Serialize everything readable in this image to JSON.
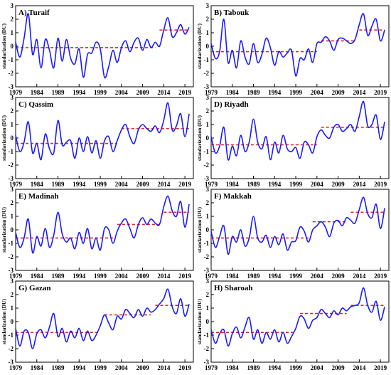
{
  "chart_data": [
    {
      "type": "line",
      "title": "A) Turaif",
      "ylabel": "standarization (DU)",
      "xlim": [
        1979,
        2021
      ],
      "ylim": [
        -3,
        3
      ],
      "x_ticks": [
        1979,
        1984,
        1989,
        1994,
        1999,
        2004,
        2009,
        2014,
        2019
      ],
      "y_ticks": [
        -3,
        -2,
        -1,
        0,
        1,
        2,
        3
      ],
      "x": [
        1979,
        1980,
        1981,
        1982,
        1983,
        1984,
        1985,
        1986,
        1987,
        1988,
        1989,
        1990,
        1991,
        1992,
        1993,
        1994,
        1995,
        1996,
        1997,
        1998,
        1999,
        2000,
        2001,
        2002,
        2003,
        2004,
        2005,
        2006,
        2007,
        2008,
        2009,
        2010,
        2011,
        2012,
        2013,
        2014,
        2015,
        2016,
        2017,
        2018,
        2019,
        2020
      ],
      "series": [
        {
          "values": [
            0.3,
            -0.8,
            0.6,
            2.4,
            -0.6,
            0.5,
            -1.6,
            0.5,
            -0.3,
            -1.6,
            0.6,
            -1.1,
            0.5,
            -0.9,
            -1.3,
            -0.2,
            -2.3,
            -0.6,
            -0.5,
            0.3,
            -0.2,
            -2.3,
            -1.5,
            -0.3,
            -1.2,
            -0.1,
            0.4,
            -0.4,
            0.3,
            0.6,
            -0.3,
            0.5,
            -0.1,
            0.3,
            0.0,
            1.2,
            2.1,
            0.7,
            1.0,
            1.6,
            0.9,
            1.4
          ]
        }
      ],
      "trend": [
        {
          "x": [
            1979,
            2012
          ],
          "y": [
            -0.1,
            -0.1
          ]
        },
        {
          "x": [
            2013,
            2020
          ],
          "y": [
            1.2,
            1.2
          ]
        }
      ]
    },
    {
      "type": "line",
      "title": "B) Tabouk",
      "ylabel": "standarization (DU)",
      "xlim": [
        1979,
        2021
      ],
      "ylim": [
        -3,
        3
      ],
      "x_ticks": [
        1979,
        1984,
        1989,
        1994,
        1999,
        2004,
        2009,
        2014,
        2019
      ],
      "y_ticks": [
        -3,
        -2,
        -1,
        0,
        1,
        2,
        3
      ],
      "x": [
        1979,
        1980,
        1981,
        1982,
        1983,
        1984,
        1985,
        1986,
        1987,
        1988,
        1989,
        1990,
        1991,
        1992,
        1993,
        1994,
        1995,
        1996,
        1997,
        1998,
        1999,
        2000,
        2001,
        2002,
        2003,
        2004,
        2005,
        2006,
        2007,
        2008,
        2009,
        2010,
        2011,
        2012,
        2013,
        2014,
        2015,
        2016,
        2017,
        2018,
        2019,
        2020
      ],
      "series": [
        {
          "values": [
            0.2,
            -0.9,
            -0.4,
            2.0,
            -1.2,
            -0.3,
            -1.6,
            0.4,
            -0.8,
            -1.3,
            0.2,
            -1.2,
            -0.6,
            0.6,
            -0.1,
            -1.4,
            -0.4,
            -0.8,
            -0.5,
            -0.3,
            -2.2,
            -0.9,
            -1.0,
            -0.2,
            -1.2,
            0.2,
            0.3,
            0.7,
            0.4,
            -0.3,
            0.5,
            0.6,
            0.4,
            0.2,
            0.5,
            1.6,
            2.4,
            0.8,
            1.5,
            2.0,
            0.4,
            1.2
          ]
        }
      ],
      "trend": [
        {
          "x": [
            1979,
            2004
          ],
          "y": [
            -0.4,
            -0.4
          ]
        },
        {
          "x": [
            2005,
            2013
          ],
          "y": [
            0.4,
            0.4
          ]
        },
        {
          "x": [
            2014,
            2020
          ],
          "y": [
            1.2,
            1.2
          ]
        }
      ]
    },
    {
      "type": "line",
      "title": "C) Qassim",
      "ylabel": "standarization (DU)",
      "xlim": [
        1979,
        2021
      ],
      "ylim": [
        -3,
        3
      ],
      "x_ticks": [
        1979,
        1984,
        1989,
        1994,
        1999,
        2004,
        2009,
        2014,
        2019
      ],
      "y_ticks": [
        -3,
        -2,
        -1,
        0,
        1,
        2,
        3
      ],
      "x": [
        1979,
        1980,
        1981,
        1982,
        1983,
        1984,
        1985,
        1986,
        1987,
        1988,
        1989,
        1990,
        1991,
        1992,
        1993,
        1994,
        1995,
        1996,
        1997,
        1998,
        1999,
        2000,
        2001,
        2002,
        2003,
        2004,
        2005,
        2006,
        2007,
        2008,
        2009,
        2010,
        2011,
        2012,
        2013,
        2014,
        2015,
        2016,
        2017,
        2018,
        2019,
        2020
      ],
      "series": [
        {
          "values": [
            0.2,
            -1.0,
            -0.3,
            1.2,
            -1.1,
            -0.4,
            -1.6,
            0.3,
            -0.8,
            -1.1,
            1.3,
            -0.5,
            -0.3,
            -0.2,
            -1.5,
            0.0,
            -1.0,
            0.1,
            -1.1,
            -0.2,
            -1.5,
            -0.2,
            0.1,
            -1.0,
            -0.2,
            0.6,
            1.0,
            0.1,
            -0.4,
            0.6,
            1.0,
            0.7,
            0.5,
            0.9,
            0.4,
            1.3,
            2.6,
            0.6,
            0.9,
            1.8,
            0.1,
            1.8
          ]
        }
      ],
      "trend": [
        {
          "x": [
            1979,
            2003
          ],
          "y": [
            -0.4,
            -0.4
          ]
        },
        {
          "x": [
            2004,
            2020
          ],
          "y": [
            0.7,
            0.7
          ]
        }
      ]
    },
    {
      "type": "line",
      "title": "D) Riyadh",
      "ylabel": "standarization (DU)",
      "xlim": [
        1979,
        2021
      ],
      "ylim": [
        -3,
        3
      ],
      "x_ticks": [
        1979,
        1984,
        1989,
        1994,
        1999,
        2004,
        2009,
        2014,
        2019
      ],
      "y_ticks": [
        -3,
        -2,
        -1,
        0,
        1,
        2,
        3
      ],
      "x": [
        1979,
        1980,
        1981,
        1982,
        1983,
        1984,
        1985,
        1986,
        1987,
        1988,
        1989,
        1990,
        1991,
        1992,
        1993,
        1994,
        1995,
        1996,
        1997,
        1998,
        1999,
        2000,
        2001,
        2002,
        2003,
        2004,
        2005,
        2006,
        2007,
        2008,
        2009,
        2010,
        2011,
        2012,
        2013,
        2014,
        2015,
        2016,
        2017,
        2018,
        2019,
        2020
      ],
      "series": [
        {
          "values": [
            0.1,
            -1.1,
            -0.6,
            0.8,
            -1.6,
            -0.6,
            -1.3,
            0.2,
            -1.0,
            -0.3,
            1.4,
            -0.3,
            -0.8,
            0.1,
            -1.6,
            -0.3,
            -1.1,
            0.2,
            -0.8,
            -1.0,
            -0.7,
            -1.5,
            -0.3,
            -0.5,
            -1.1,
            0.1,
            0.6,
            0.2,
            0.0,
            0.8,
            1.0,
            0.5,
            0.7,
            1.0,
            0.5,
            1.6,
            2.7,
            0.9,
            1.0,
            1.7,
            -0.1,
            1.2
          ]
        }
      ],
      "trend": [
        {
          "x": [
            1979,
            2004
          ],
          "y": [
            -0.5,
            -0.5
          ]
        },
        {
          "x": [
            2005,
            2020
          ],
          "y": [
            0.8,
            0.8
          ]
        }
      ]
    },
    {
      "type": "line",
      "title": "E) Madinah",
      "ylabel": "standarization (DU)",
      "xlim": [
        1979,
        2021
      ],
      "ylim": [
        -3,
        3
      ],
      "x_ticks": [
        1979,
        1984,
        1989,
        1994,
        1999,
        2004,
        2009,
        2014,
        2019
      ],
      "y_ticks": [
        -3,
        -2,
        -1,
        0,
        1,
        2,
        3
      ],
      "x": [
        1979,
        1980,
        1981,
        1982,
        1983,
        1984,
        1985,
        1986,
        1987,
        1988,
        1989,
        1990,
        1991,
        1992,
        1993,
        1994,
        1995,
        1996,
        1997,
        1998,
        1999,
        2000,
        2001,
        2002,
        2003,
        2004,
        2005,
        2006,
        2007,
        2008,
        2009,
        2010,
        2011,
        2012,
        2013,
        2014,
        2015,
        2016,
        2017,
        2018,
        2019,
        2020
      ],
      "series": [
        {
          "values": [
            -0.2,
            -1.3,
            -0.6,
            0.8,
            -1.7,
            -0.5,
            -1.2,
            0.1,
            -1.3,
            -0.4,
            1.3,
            -0.3,
            -0.9,
            -0.6,
            -1.4,
            -0.2,
            -1.0,
            0.1,
            -1.4,
            -0.6,
            -1.5,
            0.1,
            0.0,
            -1.0,
            -0.1,
            0.5,
            0.8,
            0.1,
            -0.6,
            0.4,
            0.9,
            0.4,
            0.8,
            0.5,
            0.4,
            1.7,
            2.5,
            1.4,
            1.0,
            2.1,
            0.2,
            1.9
          ]
        }
      ],
      "trend": [
        {
          "x": [
            1979,
            2002
          ],
          "y": [
            -0.6,
            -0.6
          ]
        },
        {
          "x": [
            2003,
            2013
          ],
          "y": [
            0.4,
            0.4
          ]
        },
        {
          "x": [
            2014,
            2020
          ],
          "y": [
            1.3,
            1.3
          ]
        }
      ]
    },
    {
      "type": "line",
      "title": "F) Makkah",
      "ylabel": "standarization (DU)",
      "xlim": [
        1979,
        2021
      ],
      "ylim": [
        -3,
        3
      ],
      "x_ticks": [
        1979,
        1984,
        1989,
        1994,
        1999,
        2004,
        2009,
        2014,
        2019
      ],
      "y_ticks": [
        -3,
        -2,
        -1,
        0,
        1,
        2,
        3
      ],
      "x": [
        1979,
        1980,
        1981,
        1982,
        1983,
        1984,
        1985,
        1986,
        1987,
        1988,
        1989,
        1990,
        1991,
        1992,
        1993,
        1994,
        1995,
        1996,
        1997,
        1998,
        1999,
        2000,
        2001,
        2002,
        2003,
        2004,
        2005,
        2006,
        2007,
        2008,
        2009,
        2010,
        2011,
        2012,
        2013,
        2014,
        2015,
        2016,
        2017,
        2018,
        2019,
        2020
      ],
      "series": [
        {
          "values": [
            -0.1,
            -1.3,
            -0.5,
            0.3,
            -1.8,
            -0.5,
            -0.9,
            0.0,
            -1.2,
            -0.6,
            1.0,
            -0.6,
            -0.9,
            -0.4,
            -1.3,
            -0.5,
            -1.1,
            -0.3,
            -1.5,
            -0.9,
            -0.8,
            0.2,
            -0.1,
            -0.9,
            0.0,
            0.3,
            0.6,
            0.2,
            -0.5,
            0.5,
            0.7,
            0.3,
            0.9,
            0.7,
            0.5,
            1.5,
            2.4,
            1.2,
            0.9,
            1.9,
            0.1,
            1.6
          ]
        }
      ],
      "trend": [
        {
          "x": [
            1979,
            2002
          ],
          "y": [
            -0.6,
            -0.6
          ]
        },
        {
          "x": [
            2003,
            2011
          ],
          "y": [
            0.6,
            0.6
          ]
        },
        {
          "x": [
            2012,
            2020
          ],
          "y": [
            1.3,
            1.3
          ]
        }
      ]
    },
    {
      "type": "line",
      "title": "G) Gazan",
      "ylabel": "standarization (DU)",
      "xlim": [
        1979,
        2021
      ],
      "ylim": [
        -3,
        3
      ],
      "x_ticks": [
        1979,
        1984,
        1989,
        1994,
        1999,
        2004,
        2009,
        2014,
        2019
      ],
      "y_ticks": [
        -3,
        -2,
        -1,
        0,
        1,
        2,
        3
      ],
      "x": [
        1979,
        1980,
        1981,
        1982,
        1983,
        1984,
        1985,
        1986,
        1987,
        1988,
        1989,
        1990,
        1991,
        1992,
        1993,
        1994,
        1995,
        1996,
        1997,
        1998,
        1999,
        2000,
        2001,
        2002,
        2003,
        2004,
        2005,
        2006,
        2007,
        2008,
        2009,
        2010,
        2011,
        2012,
        2013,
        2014,
        2015,
        2016,
        2017,
        2018,
        2019,
        2020
      ],
      "series": [
        {
          "values": [
            -0.5,
            -1.8,
            -0.7,
            -0.8,
            -2.0,
            -0.9,
            -0.6,
            -1.2,
            -0.4,
            0.6,
            -1.1,
            -0.5,
            -1.5,
            -0.7,
            -1.2,
            -0.5,
            -1.4,
            -0.7,
            -1.4,
            -1.0,
            -0.3,
            0.5,
            -0.1,
            -0.6,
            0.4,
            0.2,
            0.9,
            0.6,
            0.3,
            0.9,
            0.4,
            1.0,
            0.7,
            0.9,
            1.3,
            1.7,
            2.4,
            1.1,
            0.6,
            1.7,
            0.4,
            1.3
          ]
        }
      ],
      "trend": [
        {
          "x": [
            1979,
            1999
          ],
          "y": [
            -0.8,
            -0.8
          ]
        },
        {
          "x": [
            2000,
            2011
          ],
          "y": [
            0.5,
            0.5
          ]
        },
        {
          "x": [
            2012,
            2020
          ],
          "y": [
            1.2,
            1.2
          ]
        }
      ]
    },
    {
      "type": "line",
      "title": "H) Sharoah",
      "ylabel": "standarization (DU)",
      "xlim": [
        1979,
        2021
      ],
      "ylim": [
        -3,
        3
      ],
      "x_ticks": [
        1979,
        1984,
        1989,
        1994,
        1999,
        2004,
        2009,
        2014,
        2019
      ],
      "y_ticks": [
        -3,
        -2,
        -1,
        0,
        1,
        2,
        3
      ],
      "x": [
        1979,
        1980,
        1981,
        1982,
        1983,
        1984,
        1985,
        1986,
        1987,
        1988,
        1989,
        1990,
        1991,
        1992,
        1993,
        1994,
        1995,
        1996,
        1997,
        1998,
        1999,
        2000,
        2001,
        2002,
        2003,
        2004,
        2005,
        2006,
        2007,
        2008,
        2009,
        2010,
        2011,
        2012,
        2013,
        2014,
        2015,
        2016,
        2017,
        2018,
        2019,
        2020
      ],
      "series": [
        {
          "values": [
            -0.6,
            -1.6,
            -0.9,
            -0.6,
            -1.8,
            -0.9,
            -0.4,
            -1.2,
            -0.4,
            0.3,
            -1.3,
            -0.6,
            -1.6,
            -0.8,
            -1.3,
            -0.6,
            -1.5,
            -0.8,
            -1.6,
            -1.1,
            -0.5,
            0.4,
            0.2,
            -0.5,
            0.1,
            0.3,
            0.9,
            0.6,
            0.3,
            0.8,
            0.5,
            1.0,
            0.8,
            1.1,
            1.2,
            1.4,
            2.5,
            1.2,
            0.7,
            1.5,
            0.1,
            1.1
          ]
        }
      ],
      "trend": [
        {
          "x": [
            1979,
            1999
          ],
          "y": [
            -0.8,
            -0.8
          ]
        },
        {
          "x": [
            2000,
            2011
          ],
          "y": [
            0.6,
            0.6
          ]
        },
        {
          "x": [
            2012,
            2020
          ],
          "y": [
            1.2,
            1.2
          ]
        }
      ]
    }
  ],
  "colors": {
    "series": "#1a1aff",
    "trend": "#e8261e",
    "axis": "#000000",
    "background": "#ffffff"
  }
}
